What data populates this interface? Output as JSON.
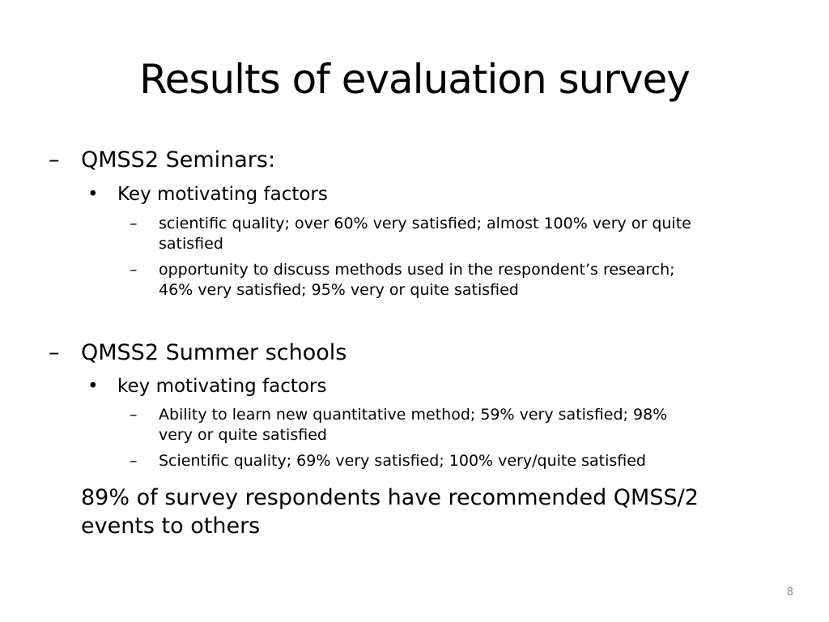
{
  "slide": {
    "title": "Results of evaluation survey",
    "sections": [
      {
        "dash": "–",
        "heading": "QMSS2 Seminars:",
        "bullet": "•",
        "subheading": "Key motivating factors",
        "points": [
          {
            "dash": "–",
            "lines": [
              "scientific quality; over 60% very satisfied; almost 100% very or quite",
              "satisfied"
            ]
          },
          {
            "dash": "–",
            "lines": [
              "opportunity to discuss methods used in the respondent’s research;",
              "46% very satisfied;  95% very or quite satisfied"
            ]
          }
        ]
      },
      {
        "dash": "–",
        "heading": "QMSS2 Summer schools",
        "bullet": "•",
        "subheading": "key motivating factors",
        "points": [
          {
            "dash": "–",
            "lines": [
              "Ability to learn new quantitative method; 59% very satisfied; 98%",
              "very or quite satisfied"
            ]
          },
          {
            "dash": "–",
            "lines": [
              "Scientific quality; 69% very satisfied; 100% very/quite satisfied"
            ]
          }
        ]
      }
    ],
    "summary": [
      "89% of survey respondents have recommended QMSS/2",
      "events to others"
    ],
    "page_number": "8"
  }
}
